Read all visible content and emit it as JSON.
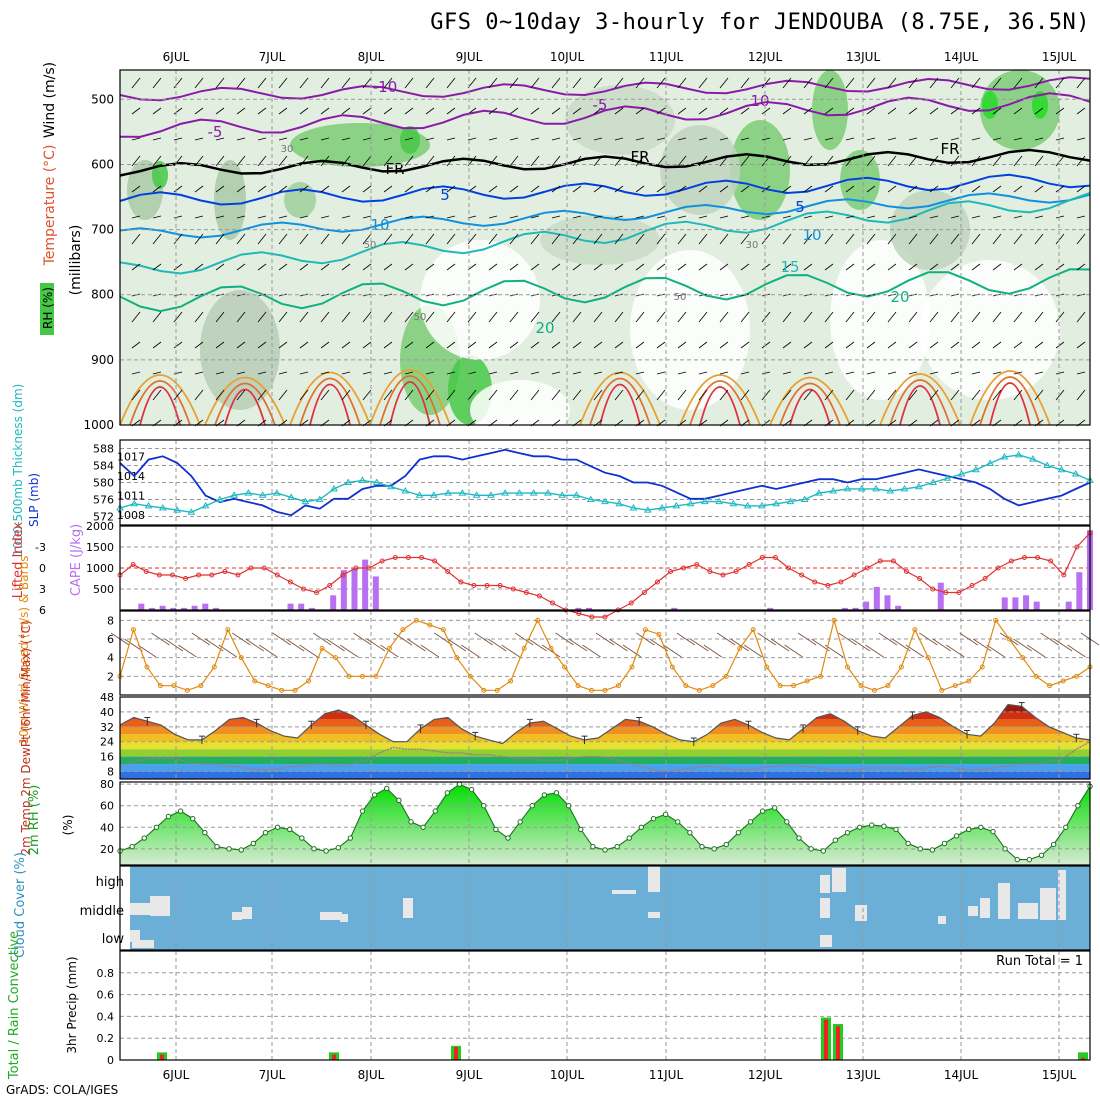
{
  "header": {
    "title": "GFS 0~10day 3-hourly for JENDOUBA (8.75E, 36.5N)",
    "credit": "GrADS: COLA/IGES"
  },
  "colors": {
    "frame": "#000000",
    "grid": "#999999",
    "slp": "#1030d0",
    "thickness": "#20b8c0",
    "lifted": "#e03030",
    "cape": "#b870f0",
    "wind": "#e08a10",
    "rh": "#00c800",
    "cloud_bg": "#6baed6",
    "cloud_fill": "#e8e8e8",
    "precip_total": "#22cc22",
    "precip_conv": "#ee2222"
  },
  "time_axis": {
    "labels": [
      "6JUL",
      "7JUL",
      "8JUL",
      "9JUL",
      "10JUL",
      "11JUL",
      "12JUL",
      "13JUL",
      "14JUL",
      "15JUL"
    ]
  },
  "panels": {
    "upper": {
      "label_wind": "Wind (m/s)",
      "label_temp": "Temperature (°C)",
      "label_rh": "RH (%)",
      "ylabel": "(millibars)",
      "ticks": [
        "500",
        "600",
        "700",
        "800",
        "900",
        "1000"
      ],
      "contour_labels": [
        "-10",
        "-5",
        "10",
        "-5",
        "FR",
        "FR",
        "FR",
        "5",
        "5",
        "10",
        "10",
        "15",
        "20",
        "20",
        "50",
        "30",
        "30",
        "50",
        "50"
      ]
    },
    "slp": {
      "label_thk": "1000-500mb Thickness (dm)",
      "label_slp": "SLP (mb)",
      "left_ticks": [
        "588",
        "584",
        "580",
        "576",
        "572"
      ],
      "right_ticks": [
        "1017",
        "1014",
        "1011",
        "1008"
      ]
    },
    "lifted": {
      "label_li": "Lifted Index",
      "label_cape": "CAPE (J/kg)",
      "left_ticks": [
        "-3",
        "0",
        "3",
        "6"
      ],
      "right_ticks": [
        "2000",
        "1500",
        "1000",
        "500"
      ]
    },
    "wind": {
      "label": "10m Wind Speed (m/s) & Barbs",
      "ticks": [
        "8",
        "6",
        "4",
        "2"
      ]
    },
    "temp": {
      "label": "2m Temp 2m DewPt (6hr Min/Max) (°C)",
      "ticks": [
        "48",
        "40",
        "32",
        "24",
        "16",
        "8"
      ]
    },
    "rh": {
      "label": "2m RH (%)",
      "ticks": [
        "80",
        "60",
        "40",
        "20"
      ]
    },
    "cloud": {
      "label": "Cloud Cover (%)",
      "levels": [
        "high",
        "middle",
        "low"
      ]
    },
    "precip": {
      "label": "Total / Rain Convective",
      "ylabel": "3hr Precip (mm)",
      "ticks": [
        "0.8",
        "0.6",
        "0.4",
        "0.2",
        "0"
      ],
      "run_total": "Run Total = 1"
    }
  },
  "chart_data": [
    {
      "type": "line",
      "title": "SLP / 1000-500mb Thickness",
      "series": [
        {
          "name": "SLP (mb)",
          "values": [
            1016,
            1014,
            1016.5,
            1017,
            1016,
            1014,
            1011,
            1010,
            1010.5,
            1010,
            1009.5,
            1008.5,
            1008,
            1009.5,
            1009,
            1010.5,
            1010.5,
            1012,
            1012.5,
            1012.5,
            1014,
            1016.5,
            1017,
            1017,
            1016.5,
            1017,
            1017.5,
            1018,
            1017.5,
            1017,
            1017,
            1016.5,
            1016.5,
            1015.5,
            1014.5,
            1014,
            1013,
            1013,
            1012.5,
            1011.5,
            1010.5,
            1010.5,
            1011,
            1011.5,
            1012,
            1012.5,
            1012,
            1012.5,
            1013,
            1013.5,
            1013.5,
            1013,
            1013.5,
            1013.5,
            1014,
            1014.5,
            1015,
            1014.5,
            1014,
            1013.5,
            1013,
            1012,
            1010.5,
            1009.5,
            1010,
            1010.5,
            1011,
            1012,
            1013
          ]
        },
        {
          "name": "Thickness (dm)",
          "values": [
            574,
            575,
            574.5,
            574,
            573.5,
            573,
            574.5,
            576,
            577,
            577.5,
            577,
            577.5,
            576.5,
            575.5,
            576,
            578.5,
            580,
            580.5,
            580,
            579,
            578,
            577,
            577,
            577.5,
            577.5,
            577,
            577,
            577.5,
            577.5,
            577.5,
            577.5,
            577,
            577,
            576,
            575.5,
            575,
            574,
            573.5,
            574,
            574.5,
            575,
            575.5,
            575.5,
            575,
            574.5,
            574.5,
            575,
            575.5,
            576,
            577.5,
            578,
            578.5,
            578.5,
            578.5,
            578,
            578.5,
            579,
            580,
            581,
            582,
            583,
            584.5,
            586,
            586.5,
            585.5,
            584,
            583,
            582,
            580.5
          ]
        }
      ]
    },
    {
      "type": "line",
      "title": "Lifted Index",
      "values": [
        1,
        -0.5,
        0.5,
        1,
        1,
        1.5,
        1,
        1,
        0.5,
        1,
        0,
        0,
        1,
        2,
        3,
        3.5,
        2.5,
        1,
        0,
        0,
        -1,
        -1.5,
        -1.5,
        -1.5,
        -1,
        0.5,
        2,
        2.5,
        2.5,
        2.5,
        3,
        3.5,
        4,
        5,
        6,
        6.5,
        7,
        7,
        6,
        5,
        3.5,
        2,
        0.5,
        0,
        -0.5,
        0.5,
        1,
        0.5,
        -0.5,
        -1.5,
        -1.5,
        0,
        1,
        2,
        2.5,
        2,
        1,
        0,
        -1,
        -1,
        0.5,
        1.5,
        3,
        3.5,
        3.5,
        2.5,
        1.5,
        0,
        -1,
        -1.5,
        -1.5,
        -1,
        1,
        -3,
        -5
      ]
    },
    {
      "type": "bar",
      "title": "CAPE (J/kg)",
      "values": [
        0,
        0,
        150,
        50,
        100,
        50,
        50,
        100,
        150,
        50,
        0,
        0,
        0,
        0,
        0,
        0,
        150,
        150,
        50,
        0,
        350,
        950,
        1000,
        1200,
        800,
        0,
        0,
        0,
        0,
        0,
        0,
        0,
        0,
        0,
        0,
        0,
        0,
        0,
        0,
        0,
        0,
        0,
        0,
        50,
        50,
        0,
        0,
        0,
        0,
        0,
        0,
        0,
        50,
        0,
        0,
        0,
        0,
        0,
        0,
        0,
        0,
        50,
        0,
        0,
        0,
        0,
        0,
        0,
        50,
        50,
        200,
        550,
        350,
        100,
        0,
        0,
        0,
        650,
        0,
        0,
        0,
        0,
        0,
        300,
        300,
        350,
        200,
        0,
        0,
        200,
        900,
        1900
      ]
    },
    {
      "type": "line",
      "title": "10m Wind Speed (m/s)",
      "values": [
        2,
        7,
        3,
        1,
        1,
        0.5,
        1,
        3,
        7,
        4,
        1.5,
        1,
        0.5,
        0.5,
        1.5,
        5,
        4,
        2,
        2,
        2,
        5,
        7,
        8,
        7.5,
        7,
        4,
        2,
        0.5,
        0.5,
        1.5,
        5,
        8,
        5,
        3,
        1,
        0.5,
        0.5,
        1,
        3,
        7,
        6.5,
        3,
        1,
        0.5,
        1,
        2,
        5,
        7,
        3,
        1,
        1,
        1.5,
        2,
        8,
        3,
        1,
        0.5,
        1,
        3,
        7,
        4,
        0.5,
        1,
        1.5,
        3,
        8,
        6,
        4,
        2,
        1,
        1.5,
        2,
        3
      ]
    },
    {
      "type": "area",
      "title": "2m Temp / DewPt",
      "series": [
        {
          "name": "2m Temp",
          "values": [
            33,
            37,
            35,
            33,
            28,
            25,
            25,
            30,
            36,
            37,
            34,
            30,
            27,
            26,
            33,
            39,
            41,
            38,
            33,
            28,
            24,
            24,
            31,
            36,
            37,
            31,
            27,
            25,
            23,
            29,
            34,
            35,
            31,
            27,
            25,
            26,
            31,
            36,
            35,
            32,
            28,
            25,
            24,
            28,
            34,
            36,
            33,
            29,
            26,
            25,
            31,
            37,
            39,
            35,
            30,
            27,
            26,
            32,
            38,
            40,
            37,
            32,
            28,
            27,
            34,
            44,
            43,
            37,
            32,
            29,
            26,
            25
          ]
        },
        {
          "name": "2m DewPt",
          "values": [
            11,
            13,
            15,
            15,
            15,
            13,
            12,
            12,
            11,
            10,
            9,
            9,
            10,
            11,
            12,
            12,
            11,
            12,
            14,
            18,
            21,
            20,
            20,
            19,
            18,
            18,
            17,
            17,
            16,
            15,
            15,
            14,
            14,
            15,
            16,
            16,
            15,
            13,
            11,
            9,
            8,
            9,
            10,
            11,
            10,
            9,
            9,
            10,
            11,
            12,
            11,
            10,
            9,
            9,
            9,
            10,
            10,
            10,
            9,
            10,
            11,
            10,
            9,
            9,
            10,
            11,
            12,
            12,
            13,
            15,
            20,
            24
          ]
        }
      ]
    },
    {
      "type": "area",
      "title": "2m RH (%)",
      "values": [
        18,
        22,
        30,
        40,
        50,
        55,
        48,
        35,
        22,
        20,
        19,
        25,
        35,
        40,
        38,
        30,
        20,
        18,
        21,
        30,
        55,
        70,
        76,
        65,
        45,
        40,
        55,
        72,
        80,
        75,
        60,
        38,
        30,
        45,
        60,
        70,
        72,
        60,
        38,
        22,
        19,
        22,
        30,
        40,
        48,
        52,
        45,
        35,
        22,
        20,
        24,
        35,
        45,
        55,
        58,
        45,
        30,
        20,
        18,
        28,
        35,
        40,
        42,
        41,
        38,
        25,
        20,
        19,
        25,
        32,
        38,
        40,
        36,
        20,
        10,
        10,
        14,
        24,
        40,
        60,
        78
      ]
    },
    {
      "type": "bar",
      "title": "3hr Precip (mm)",
      "categories": [
        "5JUL-21",
        "7JUL-15",
        "8JUL-21",
        "12JUL-15",
        "12JUL-18",
        "15JUL-09"
      ],
      "series": [
        {
          "name": "Total",
          "values": [
            0.07,
            0.07,
            0.13,
            0.39,
            0.33,
            0.07
          ]
        },
        {
          "name": "Convective",
          "values": [
            0.05,
            0.05,
            0.12,
            0.37,
            0.31,
            0.02
          ]
        }
      ]
    }
  ]
}
